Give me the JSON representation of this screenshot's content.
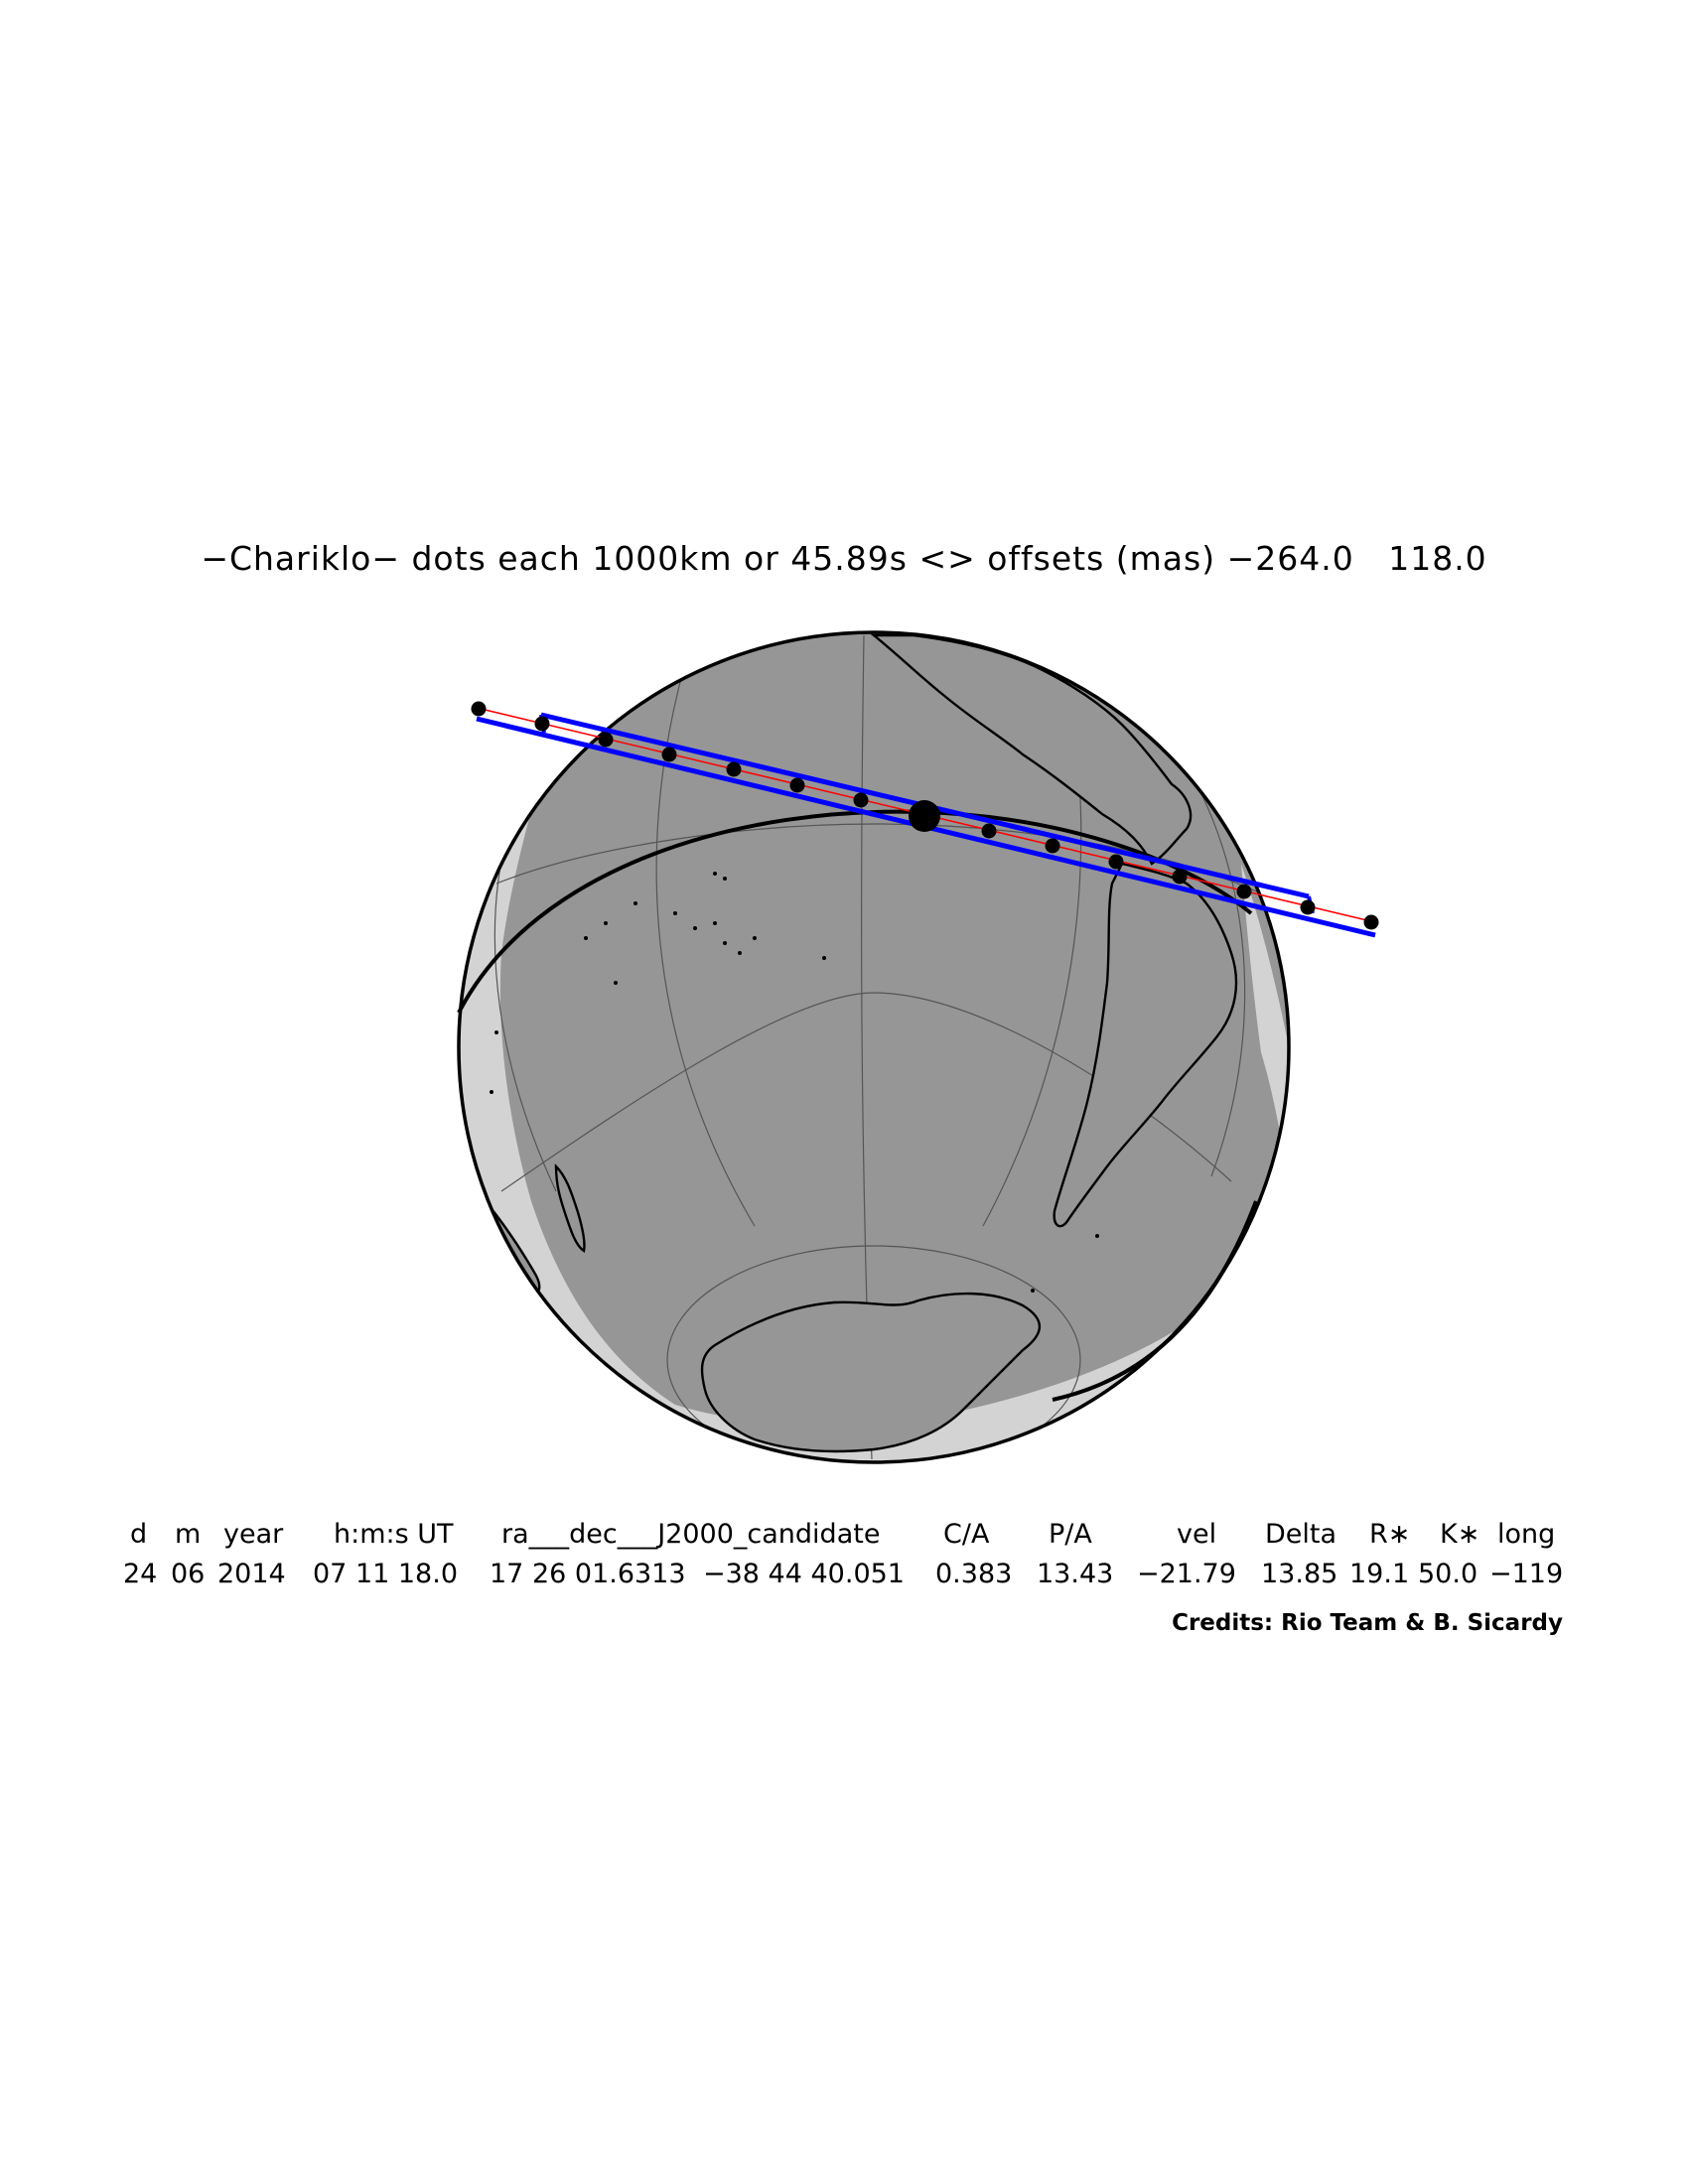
{
  "title": {
    "prefix": "−Chariklo− dots each 1000km or 45.89s <> offsets (mas)",
    "offset_1": "−264.0",
    "offset_2": "118.0"
  },
  "table": {
    "headers": [
      "d",
      "m",
      "year",
      "h:m:s UT",
      "ra___dec___J2000_candidate",
      "C/A",
      "P/A",
      "vel",
      "Delta",
      "R∗",
      "K∗",
      "long"
    ],
    "values": [
      "24",
      "06",
      "2014",
      "07 11 18.0",
      "17 26 01.6313",
      "−38 44 40.051",
      "0.383",
      "13.43",
      "−21.79",
      "13.85",
      "19.1",
      "50.0",
      "−119"
    ]
  },
  "credits": "Credits: Rio Team & B. Sicardy",
  "colors": {
    "globe_night": "#969696",
    "globe_day": "#d3d3d3",
    "shadow_limits": "#0000ff",
    "centerline": "#ff0000",
    "outline": "#000000"
  }
}
